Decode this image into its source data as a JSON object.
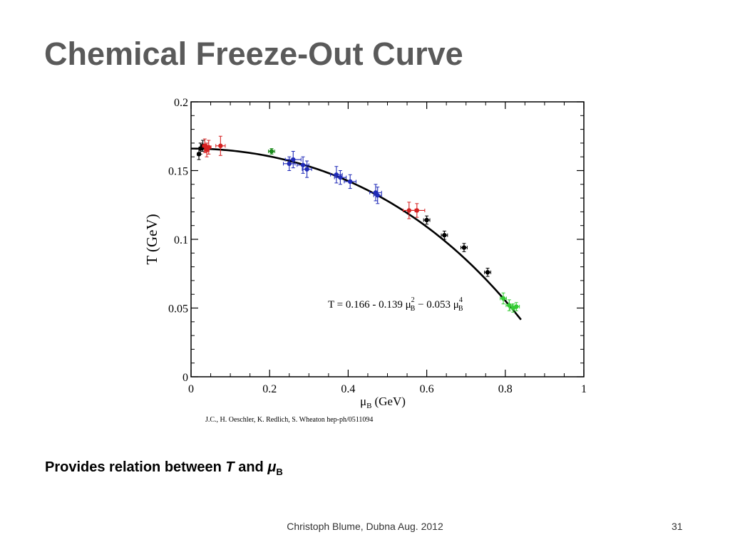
{
  "slide": {
    "title": "Chemical Freeze-Out Curve",
    "caption_prefix": "Provides relation between ",
    "caption_T": "T",
    "caption_and": " and ",
    "caption_mu": "μ",
    "caption_sub": "B",
    "footer": "Christoph Blume, Dubna Aug. 2012",
    "page_number": "31"
  },
  "chart_data": {
    "type": "scatter",
    "xlabel": "μB (GeV)",
    "xlabel_main": "μ",
    "xlabel_sub": "B",
    "xlabel_unit": "(GeV)",
    "ylabel": "T (GeV)",
    "xlim": [
      0,
      1
    ],
    "ylim": [
      0,
      0.2
    ],
    "x_ticks": [
      0,
      0.2,
      0.4,
      0.6,
      0.8,
      1
    ],
    "x_tick_labels": [
      "0",
      "0.2",
      "0.4",
      "0.6",
      "0.8",
      "1"
    ],
    "y_ticks": [
      0,
      0.05,
      0.1,
      0.15,
      0.2
    ],
    "y_tick_labels": [
      "0",
      "0.05",
      "0.1",
      "0.15",
      "0.2"
    ],
    "grid": false,
    "fit": {
      "formula_prefix": "T = 0.166 - 0.139 μ",
      "formula_mid": " − 0.053 μ",
      "sub1": "B",
      "sup1": "2",
      "sub2": "B",
      "sup2": "4",
      "coefficients": [
        0.166,
        -0.139,
        -0.053
      ],
      "x_range": [
        0,
        0.84
      ],
      "color": "#000000"
    },
    "citation": "J.C., H. Oeschler, K. Redlich, S. Wheaton   hep-ph/0511094",
    "series": [
      {
        "color": "#000000",
        "points": [
          {
            "x": 0.02,
            "y": 0.162,
            "xerr": 0.004,
            "yerr": 0.004
          },
          {
            "x": 0.024,
            "y": 0.166,
            "xerr": 0.004,
            "yerr": 0.004
          },
          {
            "x": 0.03,
            "y": 0.168,
            "xerr": 0.004,
            "yerr": 0.004
          },
          {
            "x": 0.6,
            "y": 0.114,
            "xerr": 0.008,
            "yerr": 0.003
          },
          {
            "x": 0.645,
            "y": 0.103,
            "xerr": 0.008,
            "yerr": 0.003
          },
          {
            "x": 0.695,
            "y": 0.094,
            "xerr": 0.008,
            "yerr": 0.003
          },
          {
            "x": 0.755,
            "y": 0.076,
            "xerr": 0.008,
            "yerr": 0.003
          }
        ]
      },
      {
        "color": "#d62020",
        "points": [
          {
            "x": 0.035,
            "y": 0.168,
            "xerr": 0.006,
            "yerr": 0.005
          },
          {
            "x": 0.04,
            "y": 0.165,
            "xerr": 0.006,
            "yerr": 0.005
          },
          {
            "x": 0.045,
            "y": 0.167,
            "xerr": 0.006,
            "yerr": 0.005
          },
          {
            "x": 0.075,
            "y": 0.168,
            "xerr": 0.012,
            "yerr": 0.007
          },
          {
            "x": 0.555,
            "y": 0.121,
            "xerr": 0.015,
            "yerr": 0.006
          },
          {
            "x": 0.575,
            "y": 0.121,
            "xerr": 0.02,
            "yerr": 0.005
          }
        ]
      },
      {
        "color": "#1a8a1a",
        "points": [
          {
            "x": 0.205,
            "y": 0.164,
            "xerr": 0.008,
            "yerr": 0.002
          }
        ]
      },
      {
        "color": "#1f2ab8",
        "points": [
          {
            "x": 0.25,
            "y": 0.155,
            "xerr": 0.015,
            "yerr": 0.005
          },
          {
            "x": 0.26,
            "y": 0.158,
            "xerr": 0.02,
            "yerr": 0.006
          },
          {
            "x": 0.285,
            "y": 0.154,
            "xerr": 0.015,
            "yerr": 0.006
          },
          {
            "x": 0.295,
            "y": 0.151,
            "xerr": 0.012,
            "yerr": 0.006
          },
          {
            "x": 0.37,
            "y": 0.147,
            "xerr": 0.015,
            "yerr": 0.006
          },
          {
            "x": 0.38,
            "y": 0.145,
            "xerr": 0.015,
            "yerr": 0.005
          },
          {
            "x": 0.405,
            "y": 0.142,
            "xerr": 0.015,
            "yerr": 0.005
          },
          {
            "x": 0.47,
            "y": 0.134,
            "xerr": 0.015,
            "yerr": 0.006
          },
          {
            "x": 0.475,
            "y": 0.132,
            "xerr": 0.01,
            "yerr": 0.006
          }
        ]
      },
      {
        "color": "#33cc33",
        "points": [
          {
            "x": 0.795,
            "y": 0.057,
            "xerr": 0.008,
            "yerr": 0.004
          },
          {
            "x": 0.81,
            "y": 0.052,
            "xerr": 0.008,
            "yerr": 0.004
          },
          {
            "x": 0.82,
            "y": 0.05,
            "xerr": 0.008,
            "yerr": 0.003
          },
          {
            "x": 0.828,
            "y": 0.051,
            "xerr": 0.008,
            "yerr": 0.003
          }
        ]
      }
    ]
  }
}
